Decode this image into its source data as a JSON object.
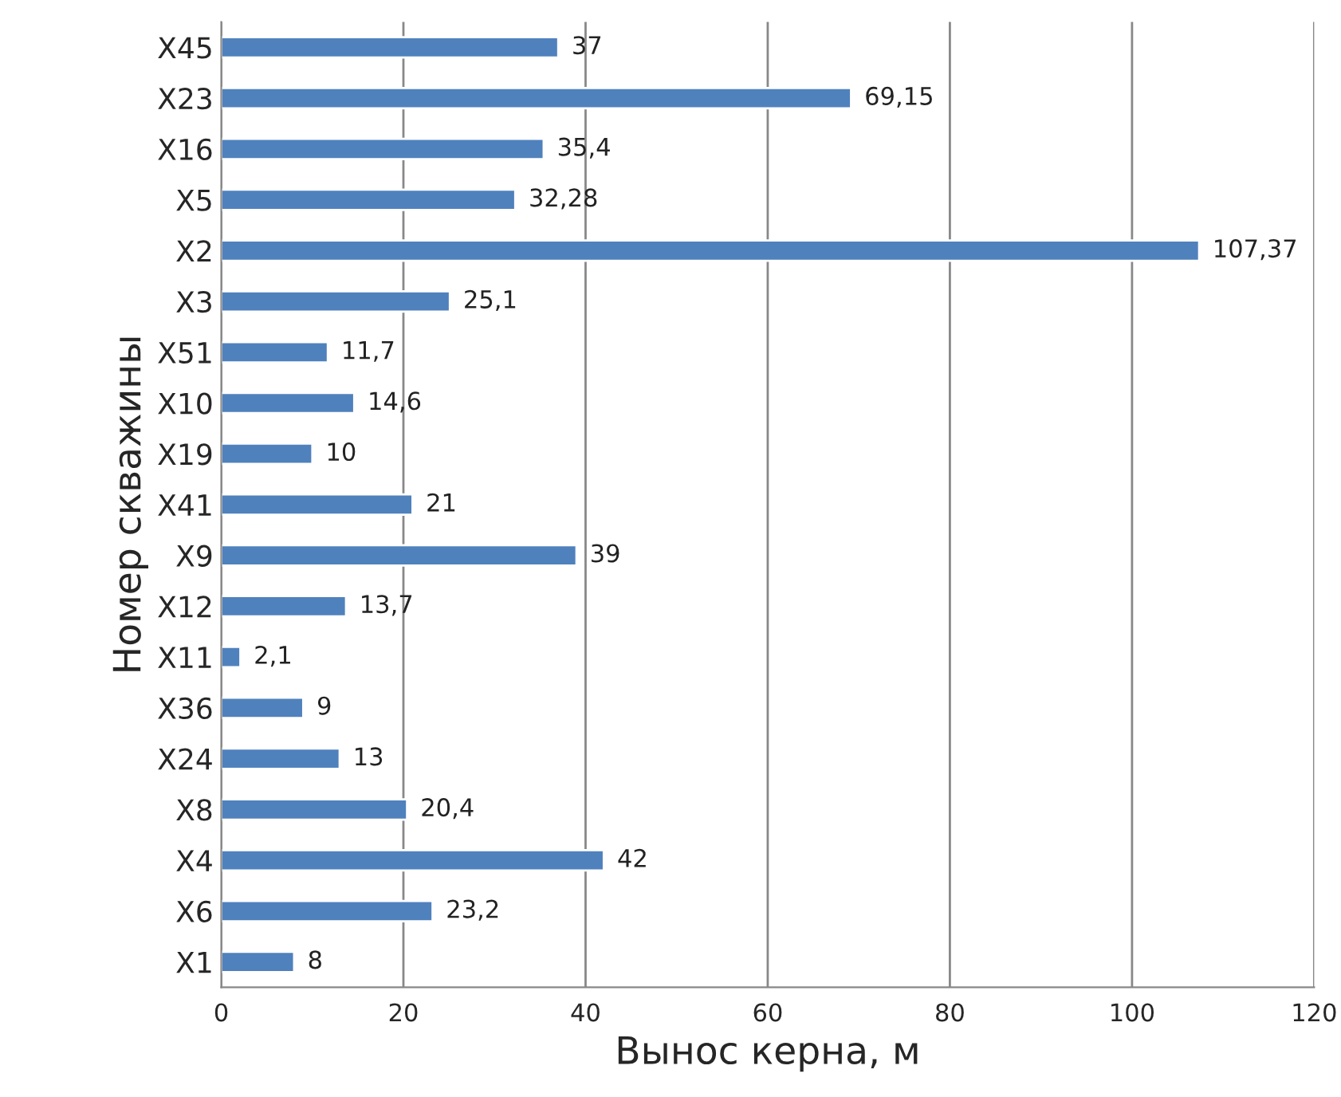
{
  "chart_data": {
    "type": "bar",
    "orientation": "horizontal",
    "xlabel": "Вынос керна, м",
    "ylabel": "Номер скважины",
    "categories": [
      "X45",
      "X23",
      "X16",
      "X5",
      "X2",
      "X3",
      "X51",
      "X10",
      "X19",
      "X41",
      "X9",
      "X12",
      "X11",
      "X36",
      "X24",
      "X8",
      "X4",
      "X6",
      "X1"
    ],
    "values": [
      37,
      69.15,
      35.4,
      32.28,
      107.37,
      25.1,
      11.7,
      14.6,
      10,
      21,
      39,
      13.7,
      2.1,
      9,
      13,
      20.4,
      42,
      23.2,
      8
    ],
    "value_labels": [
      "37",
      "69,15",
      "35,4",
      "32,28",
      "107,37",
      "25,1",
      "11,7",
      "14,6",
      "10",
      "21",
      "39",
      "13,7",
      "2,1",
      "9",
      "13",
      "20,4",
      "42",
      "23,2",
      "8"
    ],
    "color": "#4f81bd",
    "xlim": [
      0,
      120
    ],
    "xticks": [
      0,
      20,
      40,
      60,
      80,
      100,
      120
    ],
    "grid": "x",
    "legend": false
  }
}
